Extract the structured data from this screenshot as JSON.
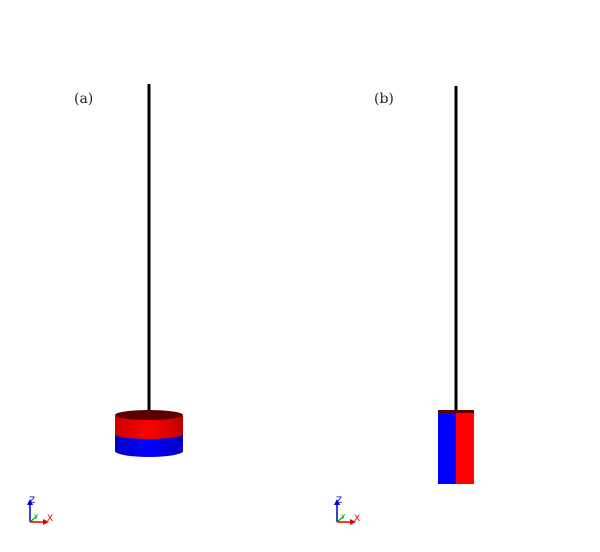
{
  "panels": [
    {
      "label": "(a)",
      "magnet": "horizontal-disc",
      "top_color": "#ff0000",
      "bottom_color": "#0000ff"
    },
    {
      "label": "(b)",
      "magnet": "vertical-block",
      "left_color": "#0000ff",
      "right_color": "#ff0000"
    }
  ],
  "triad": {
    "z_label": "Z",
    "y_label": "Y",
    "x_label": "X",
    "colors": {
      "z": "#0000cc",
      "y": "#00aa00",
      "x": "#dd0000"
    }
  },
  "colors": {
    "string": "#000000",
    "red": "#ff0000",
    "blue": "#0000ff",
    "dark_red": "#5a0000"
  }
}
